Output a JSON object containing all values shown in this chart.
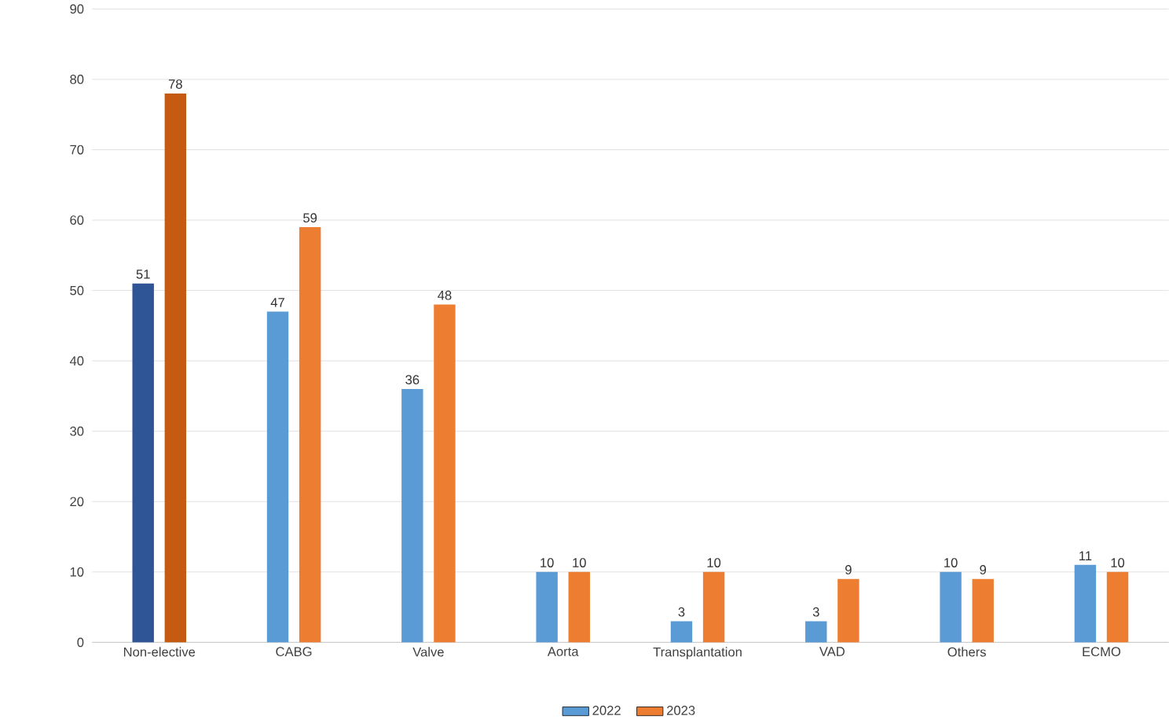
{
  "chart_data": {
    "type": "bar",
    "categories": [
      "Non-elective",
      "CABG",
      "Valve",
      "Aorta",
      "Transplantation",
      "VAD",
      "Others",
      "ECMO"
    ],
    "series": [
      {
        "name": "2022",
        "color": "#5b9bd5",
        "colors": [
          "#2f5597",
          "#5b9bd5",
          "#5b9bd5",
          "#5b9bd5",
          "#5b9bd5",
          "#5b9bd5",
          "#5b9bd5",
          "#5b9bd5"
        ],
        "values": [
          51,
          47,
          36,
          10,
          3,
          3,
          10,
          11
        ]
      },
      {
        "name": "2023",
        "color": "#ed7d31",
        "colors": [
          "#c55a11",
          "#ed7d31",
          "#ed7d31",
          "#ed7d31",
          "#ed7d31",
          "#ed7d31",
          "#ed7d31",
          "#ed7d31"
        ],
        "values": [
          78,
          59,
          48,
          10,
          10,
          9,
          9,
          10
        ]
      }
    ],
    "ylim": [
      0,
      90
    ],
    "yticks": [
      0,
      10,
      20,
      30,
      40,
      50,
      60,
      70,
      80,
      90
    ],
    "grid": "y",
    "legend": "bottom",
    "data_labels": true
  }
}
